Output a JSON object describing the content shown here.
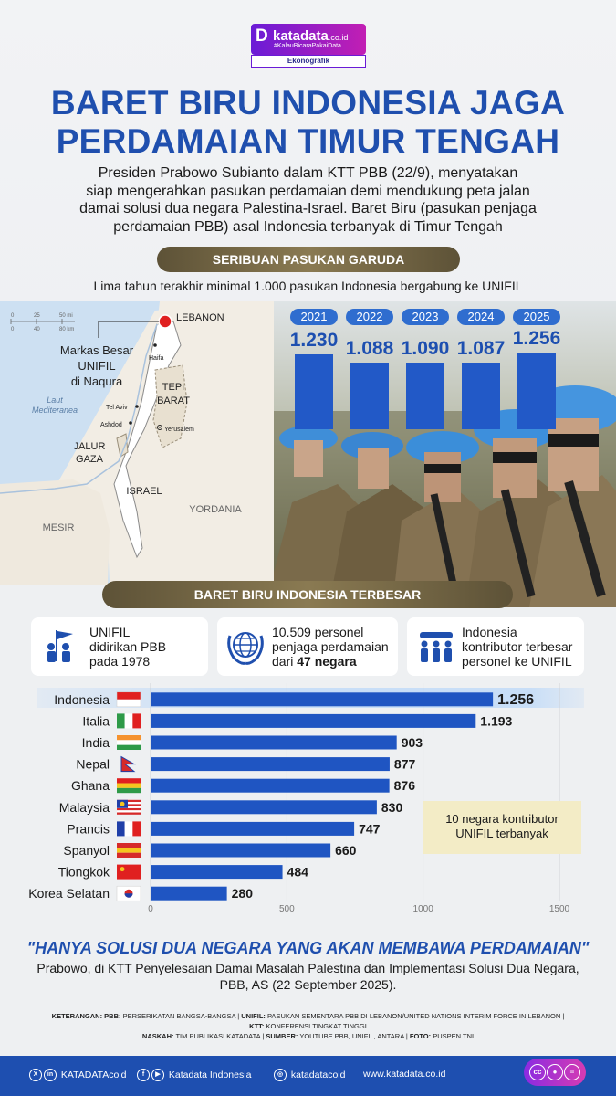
{
  "logo": {
    "letter": "D",
    "name": "katadata",
    "domain": ".co.id",
    "tagline": "#KalauBicaraPakaiData",
    "section": "Ekonografik"
  },
  "title_line1": "BARET BIRU INDONESIA JAGA",
  "title_line2": "PERDAMAIAN TIMUR TENGAH",
  "intro": [
    "Presiden Prabowo Subianto  dalam KTT PBB (22/9), menyatakan",
    "siap mengerahkan pasukan perdamaian demi mendukung peta jalan",
    "damai solusi dua negara Palestina-Israel. Baret Biru (pasukan penjaga",
    "perdamaian PBB) asal Indonesia terbanyak di Timur Tengah"
  ],
  "section1": "SERIBUAN PASUKAN GARUDA",
  "section1_sub": "Lima tahun terakhir minimal 1.000 pasukan Indonesia bergabung ke UNIFIL",
  "map": {
    "scale_ticks_mi": [
      "0",
      "25",
      "50 mi"
    ],
    "scale_ticks_km": [
      "0",
      "40",
      "80 km"
    ],
    "labels": {
      "lebanon": "LEBANON",
      "hq": [
        "Markas Besar",
        "UNIFIL",
        "di Naqura"
      ],
      "haifa": "Haifa",
      "sea": [
        "Laut",
        "Mediteranea"
      ],
      "telaviv": "Tel Aviv",
      "ashdod": "Ashdod",
      "westbank": [
        "TEPI",
        "BARAT"
      ],
      "jerusalem": "Yerusalem",
      "gaza": [
        "JALUR",
        "GAZA"
      ],
      "israel": "ISRAEL",
      "jordan": "YORDANIA",
      "egypt": "MESIR"
    }
  },
  "yearly": {
    "years": [
      "2021",
      "2022",
      "2023",
      "2024",
      "2025"
    ],
    "values": [
      1230,
      1088,
      1090,
      1087,
      1256
    ],
    "labels": [
      "1.230",
      "1.088",
      "1.090",
      "1.087",
      "1.256"
    ]
  },
  "section2": "BARET BIRU INDONESIA TERBESAR",
  "cards": [
    {
      "icon": "un-flag-icon",
      "lines": [
        "UNIFIL",
        "didirikan PBB",
        "pada 1978"
      ]
    },
    {
      "icon": "un-emblem-icon",
      "line1": "10.509 personel",
      "line2": "penjaga perdamaian",
      "line3_prefix": "dari ",
      "line3_bold": "47 negara"
    },
    {
      "icon": "troops-icon",
      "lines": [
        "Indonesia",
        "kontributor terbesar",
        "personel ke UNIFIL"
      ]
    }
  ],
  "chart_data": {
    "type": "bar",
    "orientation": "horizontal",
    "title": "10 negara kontributor UNIFIL terbanyak",
    "categories": [
      "Indonesia",
      "Italia",
      "India",
      "Nepal",
      "Ghana",
      "Malaysia",
      "Prancis",
      "Spanyol",
      "Tiongkok",
      "Korea Selatan"
    ],
    "values": [
      1256,
      1193,
      903,
      877,
      876,
      830,
      747,
      660,
      484,
      280
    ],
    "value_labels": [
      "1.256",
      "1.193",
      "903",
      "877",
      "876",
      "830",
      "747",
      "660",
      "484",
      "280"
    ],
    "xlim": [
      0,
      1500
    ],
    "xticks": [
      "0",
      "500",
      "1000",
      "1500"
    ],
    "bar_color": "#1f55c2",
    "highlight": "Indonesia"
  },
  "chart_note": [
    "10 negara kontributor",
    "UNIFIL terbanyak"
  ],
  "quote": "\"HANYA SOLUSI DUA NEGARA YANG AKAN MEMBAWA PERDAMAIAN\"",
  "quote_source": [
    "Prabowo, di KTT Penyelesaian Damai Masalah Palestina dan Implementasi Solusi Dua Negara,",
    "PBB, AS (22 September 2025)."
  ],
  "notes": {
    "k1": "KETERANGAN: PBB:",
    "v1": " PERSERIKATAN BANGSA-BANGSA | ",
    "k2": "UNIFIL:",
    "v2": " PASUKAN SEMENTARA PBB DI LEBANON/UNITED NATIONS INTERIM FORCE IN LEBANON |",
    "k3": "KTT:",
    "v3": " KONFERENSI TINGKAT TINGGI",
    "k4": "NASKAH:",
    "v4": " TIM PUBLIKASI KATADATA | ",
    "k5": "SUMBER:",
    "v5": " YOUTUBE PBB, UNIFIL, ANTARA | ",
    "k6": "FOTO:",
    "v6": " PUSPEN TNI"
  },
  "footer": {
    "social1": "KATADATAcoid",
    "social2": "Katadata Indonesia",
    "social3": "katadatacoid",
    "website": "www.katadata.co.id",
    "colors": {
      "bg": "#1e4fb0",
      "accent": "#1f4fae"
    }
  }
}
